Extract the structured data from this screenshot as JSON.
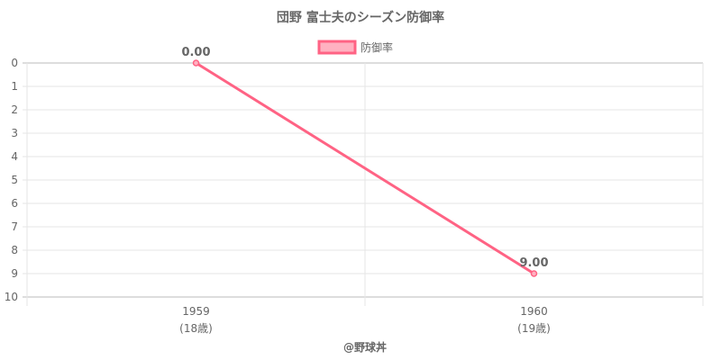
{
  "chart_data": {
    "type": "line",
    "title": "団野 富士夫のシーズン防御率",
    "categories": [
      "1959",
      "1960"
    ],
    "category_sublabels": [
      "(18歳)",
      "(19歳)"
    ],
    "series": [
      {
        "name": "防御率",
        "values": [
          0.0,
          9.0
        ],
        "data_labels": [
          "0.00",
          "9.00"
        ]
      }
    ],
    "ylim": [
      0,
      10
    ],
    "y_reversed": true,
    "y_ticks": [
      0,
      1,
      2,
      3,
      4,
      5,
      6,
      7,
      8,
      9,
      10
    ],
    "grid": true,
    "legend": "top-center",
    "xlabel": "",
    "ylabel": ""
  },
  "footer": "@野球丼",
  "colors": {
    "line": "#ff6384",
    "fill": "#ffb1c1",
    "grid": "#e6e6e6",
    "text": "#666666"
  }
}
